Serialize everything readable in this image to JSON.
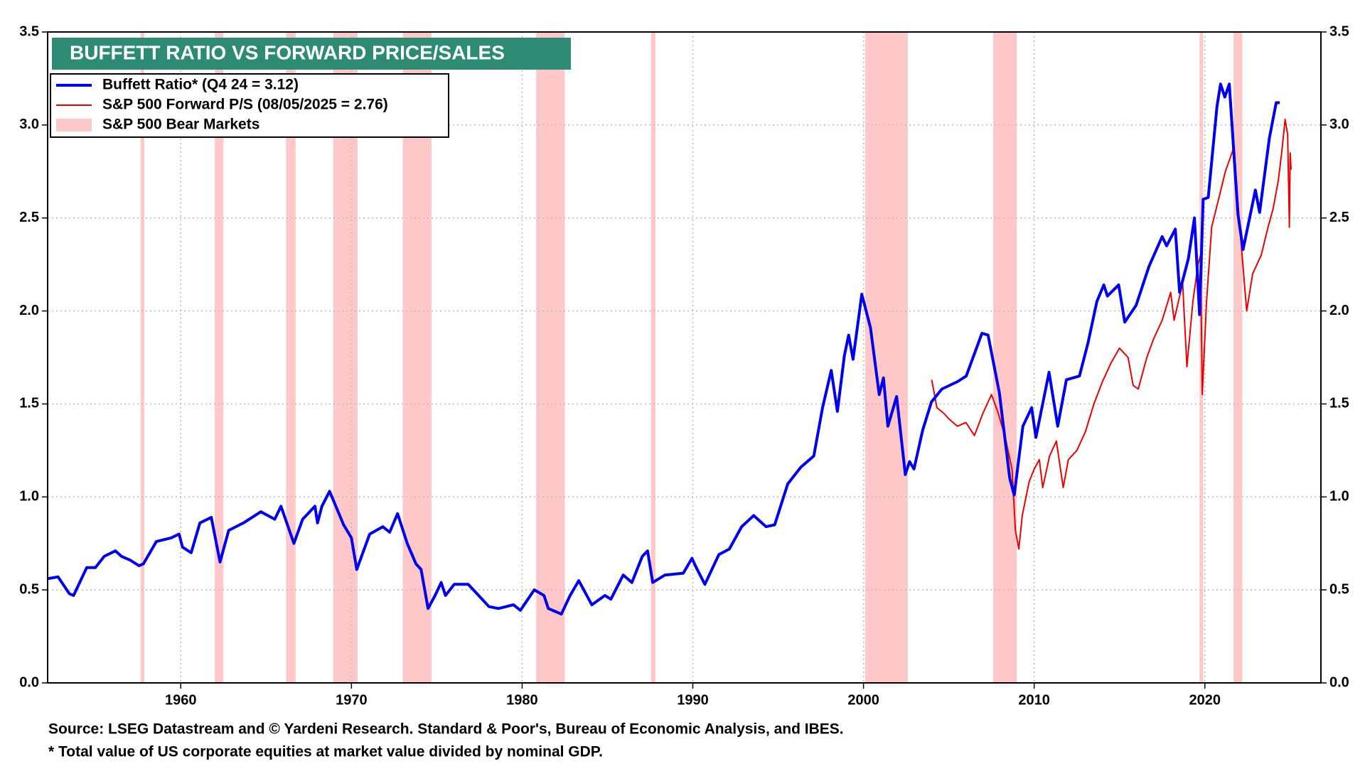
{
  "chart_data": {
    "type": "line",
    "title": "BUFFETT RATIO VS FORWARD PRICE/SALES",
    "source": "Source: LSEG Datastream and © Yardeni Research. Standard & Poor's, Bureau of Economic Analysis, and IBES.",
    "note": "* Total value of US corporate equities at market value divided by nominal GDP.",
    "xlim": [
      1952.2,
      2026.8
    ],
    "xticks": [
      1960,
      1970,
      1980,
      1990,
      2000,
      2010,
      2020
    ],
    "ylim": [
      0,
      3.5
    ],
    "yticks": [
      {
        "value": 0,
        "label": "0.0"
      },
      0.5,
      {
        "value": 1,
        "label": "1.0"
      },
      1.5,
      {
        "value": 2,
        "label": "2.0"
      },
      2.5,
      {
        "value": 3,
        "label": "3.0"
      },
      3.5
    ],
    "grid": true,
    "legend": "top-left",
    "series": [
      {
        "name": "Buffett Ratio* (Q4 24 = 3.12)",
        "color": "#0000ee",
        "x": [
          1952.19,
          1952.81,
          1953.47,
          1953.72,
          1954.49,
          1955.0,
          1955.51,
          1956.17,
          1956.53,
          1957.04,
          1957.55,
          1957.81,
          1958.57,
          1959.44,
          1959.9,
          1960.1,
          1960.61,
          1961.12,
          1961.79,
          1962.3,
          1962.81,
          1963.67,
          1964.69,
          1965.51,
          1965.87,
          1966.63,
          1967.14,
          1967.86,
          1968.01,
          1968.27,
          1968.72,
          1969.54,
          1970.0,
          1970.31,
          1971.07,
          1971.84,
          1972.24,
          1972.7,
          1973.27,
          1973.78,
          1974.08,
          1974.49,
          1974.9,
          1975.26,
          1975.51,
          1976.02,
          1976.84,
          1977.35,
          1978.06,
          1978.62,
          1979.49,
          1979.9,
          1980.71,
          1981.28,
          1981.53,
          1982.04,
          1982.3,
          1982.81,
          1983.32,
          1984.08,
          1984.85,
          1985.2,
          1985.92,
          1986.43,
          1987.04,
          1987.35,
          1987.65,
          1988.37,
          1989.44,
          1989.95,
          1990.2,
          1990.71,
          1991.53,
          1992.14,
          1992.86,
          1993.57,
          1994.29,
          1994.8,
          1995.56,
          1996.33,
          1997.09,
          1997.6,
          1998.11,
          1998.47,
          1998.88,
          1999.13,
          1999.39,
          1999.9,
          2000.41,
          2000.92,
          2001.17,
          2001.43,
          2001.94,
          2002.45,
          2002.7,
          2002.96,
          2003.47,
          2003.98,
          2004.59,
          2005.51,
          2006.02,
          2006.94,
          2007.3,
          2007.96,
          2008.57,
          2008.83,
          2009.34,
          2009.85,
          2010.1,
          2010.87,
          2011.38,
          2011.89,
          2012.65,
          2013.16,
          2013.67,
          2014.08,
          2014.29,
          2014.95,
          2015.31,
          2015.97,
          2016.73,
          2017.5,
          2017.76,
          2018.27,
          2018.52,
          2019.03,
          2019.39,
          2019.69,
          2019.9,
          2020.2,
          2020.71,
          2020.92,
          2021.17,
          2021.43,
          2021.94,
          2022.24,
          2022.96,
          2023.21,
          2023.78,
          2024.18,
          2024.39
        ],
        "values": [
          0.56,
          0.57,
          0.48,
          0.47,
          0.62,
          0.62,
          0.68,
          0.71,
          0.68,
          0.66,
          0.63,
          0.64,
          0.76,
          0.78,
          0.8,
          0.73,
          0.7,
          0.86,
          0.89,
          0.65,
          0.82,
          0.86,
          0.92,
          0.88,
          0.95,
          0.75,
          0.88,
          0.95,
          0.86,
          0.95,
          1.03,
          0.85,
          0.78,
          0.61,
          0.8,
          0.84,
          0.81,
          0.91,
          0.75,
          0.64,
          0.61,
          0.4,
          0.47,
          0.54,
          0.47,
          0.53,
          0.53,
          0.48,
          0.41,
          0.4,
          0.42,
          0.39,
          0.5,
          0.47,
          0.4,
          0.38,
          0.37,
          0.47,
          0.55,
          0.42,
          0.47,
          0.45,
          0.58,
          0.54,
          0.68,
          0.71,
          0.54,
          0.58,
          0.59,
          0.67,
          0.62,
          0.53,
          0.69,
          0.72,
          0.84,
          0.9,
          0.84,
          0.85,
          1.07,
          1.16,
          1.22,
          1.48,
          1.68,
          1.46,
          1.76,
          1.87,
          1.74,
          2.09,
          1.91,
          1.55,
          1.64,
          1.38,
          1.54,
          1.12,
          1.19,
          1.15,
          1.36,
          1.51,
          1.58,
          1.62,
          1.65,
          1.88,
          1.87,
          1.56,
          1.1,
          1.01,
          1.38,
          1.48,
          1.32,
          1.67,
          1.38,
          1.63,
          1.65,
          1.83,
          2.05,
          2.14,
          2.08,
          2.14,
          1.94,
          2.03,
          2.24,
          2.4,
          2.35,
          2.44,
          2.1,
          2.28,
          2.5,
          1.98,
          2.6,
          2.61,
          3.1,
          3.22,
          3.15,
          3.22,
          2.52,
          2.33,
          2.65,
          2.53,
          2.93,
          3.12,
          3.12
        ]
      },
      {
        "name": "S&P 500 Forward P/S (08/05/2025 = 2.76)",
        "color": "#ee0000",
        "x": [
          2004.0,
          2004.3,
          2004.7,
          2005.0,
          2005.5,
          2006.0,
          2006.5,
          2007.0,
          2007.5,
          2007.9,
          2008.3,
          2008.7,
          2008.9,
          2009.1,
          2009.3,
          2009.7,
          2010.0,
          2010.3,
          2010.5,
          2010.9,
          2011.3,
          2011.7,
          2012.0,
          2012.5,
          2013.0,
          2013.5,
          2014.0,
          2014.5,
          2015.0,
          2015.5,
          2015.8,
          2016.1,
          2016.6,
          2017.0,
          2017.5,
          2018.0,
          2018.2,
          2018.7,
          2018.95,
          2019.3,
          2019.6,
          2019.75,
          2019.85,
          2020.1,
          2020.4,
          2020.8,
          2021.2,
          2021.7,
          2022.0,
          2022.45,
          2022.8,
          2023.3,
          2023.7,
          2024.0,
          2024.3,
          2024.5,
          2024.7,
          2024.85,
          2024.95,
          2025.0,
          2025.05
        ],
        "values": [
          1.63,
          1.48,
          1.45,
          1.42,
          1.38,
          1.4,
          1.33,
          1.45,
          1.55,
          1.45,
          1.32,
          1.15,
          0.82,
          0.72,
          0.9,
          1.08,
          1.15,
          1.2,
          1.05,
          1.22,
          1.3,
          1.05,
          1.2,
          1.25,
          1.35,
          1.5,
          1.62,
          1.72,
          1.8,
          1.75,
          1.6,
          1.58,
          1.75,
          1.85,
          1.95,
          2.1,
          1.95,
          2.15,
          1.7,
          2.05,
          2.25,
          2.3,
          1.55,
          2.05,
          2.45,
          2.6,
          2.75,
          2.88,
          2.5,
          2.0,
          2.2,
          2.3,
          2.45,
          2.55,
          2.7,
          2.85,
          3.03,
          2.95,
          2.45,
          2.85,
          2.76
        ]
      }
    ],
    "bear_markets": {
      "name": "S&P 500 Bear Markets",
      "color": "#ffc8c8",
      "ranges": [
        [
          1957.65,
          1957.86
        ],
        [
          1961.99,
          1962.5
        ],
        [
          1966.17,
          1966.73
        ],
        [
          1968.93,
          1970.36
        ],
        [
          1973.01,
          1974.69
        ],
        [
          1980.82,
          1982.5
        ],
        [
          1987.55,
          1987.81
        ],
        [
          2000.1,
          2002.6
        ],
        [
          2007.6,
          2008.98
        ],
        [
          2019.69,
          2019.9
        ],
        [
          2021.68,
          2022.19
        ]
      ]
    }
  }
}
